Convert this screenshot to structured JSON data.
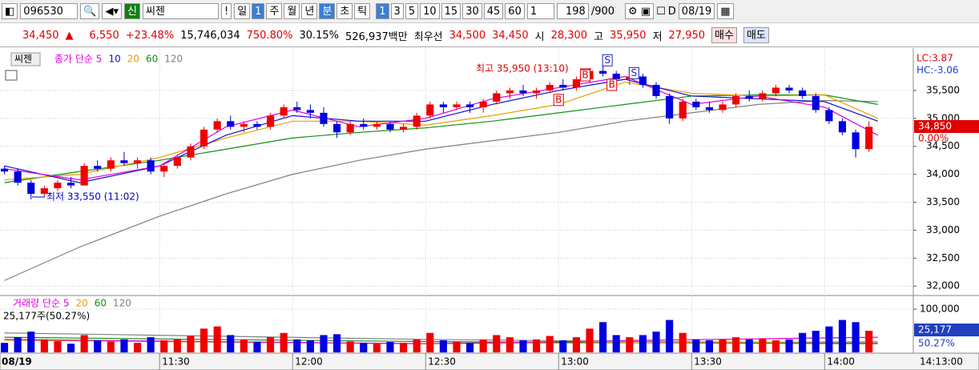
{
  "toolbar": {
    "code": "096530",
    "badge": "신",
    "name": "씨젠",
    "alert": "!",
    "periods": [
      "일",
      "1",
      "주",
      "월",
      "년",
      "분",
      "초",
      "틱"
    ],
    "minutes": [
      "1",
      "3",
      "5",
      "10",
      "15",
      "30",
      "45",
      "60"
    ],
    "unit": "1",
    "count": "198",
    "max": "/900",
    "d_label": "D",
    "date": "08/19"
  },
  "quote": {
    "price": "34,450",
    "arrow": "▲",
    "change": "6,550",
    "rate": "+23.48%",
    "volume": "15,746,034",
    "vol_ratio": "750.80%",
    "turnover": "30.15%",
    "amount": "526,937백만",
    "best_label": "최우선",
    "ask": "34,500",
    "bid": "34,450",
    "open_label": "시",
    "open": "28,300",
    "high_label": "고",
    "high": "35,950",
    "low_label": "저",
    "low": "27,950",
    "buy": "매수",
    "sell": "매도"
  },
  "chart_data": {
    "type": "candlestick",
    "legend_title": "씨젠",
    "up_color": "#f00000",
    "down_color": "#0000e0",
    "x": [
      655,
      658,
      661,
      664,
      667,
      670,
      673,
      676,
      679,
      682,
      685,
      688,
      691,
      694,
      697,
      700,
      703,
      706,
      709,
      712,
      715,
      718,
      721,
      724,
      727,
      730,
      733,
      736,
      739,
      742,
      745,
      748,
      751,
      754,
      757,
      760,
      763,
      766,
      769,
      772,
      775,
      778,
      781,
      784,
      787,
      790,
      793,
      796,
      799,
      802,
      805,
      808,
      811,
      814,
      817,
      820,
      823,
      826,
      829,
      832,
      835,
      838,
      841,
      844,
      847,
      850
    ],
    "open": [
      34100,
      34050,
      33850,
      33650,
      33750,
      33850,
      33800,
      34150,
      34100,
      34250,
      34200,
      34250,
      34050,
      34150,
      34300,
      34500,
      34800,
      34950,
      34850,
      34900,
      34850,
      35050,
      35200,
      35150,
      35100,
      34900,
      34750,
      34900,
      34850,
      34900,
      34800,
      34850,
      35050,
      35250,
      35200,
      35250,
      35200,
      35300,
      35450,
      35500,
      35450,
      35500,
      35600,
      35550,
      35700,
      35850,
      35800,
      35700,
      35750,
      35600,
      35400,
      35000,
      35300,
      35200,
      35150,
      35250,
      35400,
      35350,
      35450,
      35550,
      35500,
      35400,
      35150,
      34950,
      34750,
      34450
    ],
    "high": [
      34150,
      34100,
      33900,
      33800,
      33900,
      33950,
      34200,
      34250,
      34300,
      34400,
      34300,
      34300,
      34200,
      34350,
      34550,
      34850,
      35000,
      35050,
      34950,
      34950,
      35100,
      35250,
      35300,
      35250,
      35200,
      34950,
      34950,
      35000,
      34950,
      34950,
      34900,
      35100,
      35300,
      35300,
      35300,
      35300,
      35350,
      35500,
      35550,
      35600,
      35550,
      35650,
      35700,
      35750,
      35900,
      35950,
      35850,
      35800,
      35800,
      35650,
      35450,
      35350,
      35350,
      35300,
      35300,
      35450,
      35500,
      35500,
      35600,
      35600,
      35550,
      35450,
      35200,
      35000,
      34800,
      34950
    ],
    "low": [
      34000,
      33800,
      33550,
      33600,
      33700,
      33750,
      33800,
      34050,
      34050,
      34150,
      34100,
      34000,
      33950,
      34100,
      34250,
      34450,
      34750,
      34800,
      34750,
      34800,
      34800,
      35000,
      35100,
      35000,
      34850,
      34650,
      34700,
      34800,
      34800,
      34750,
      34750,
      34800,
      35000,
      35100,
      35150,
      35100,
      35100,
      35250,
      35350,
      35400,
      35350,
      35450,
      35500,
      35500,
      35650,
      35750,
      35650,
      35600,
      35550,
      35350,
      34900,
      34950,
      35150,
      35100,
      35100,
      35200,
      35300,
      35300,
      35400,
      35450,
      35350,
      35100,
      34900,
      34700,
      34300,
      34400
    ],
    "close": [
      34050,
      33850,
      33650,
      33750,
      33850,
      33800,
      34150,
      34100,
      34250,
      34200,
      34250,
      34050,
      34150,
      34300,
      34500,
      34800,
      34950,
      34850,
      34900,
      34850,
      35050,
      35200,
      35150,
      35100,
      34900,
      34750,
      34900,
      34850,
      34900,
      34800,
      34850,
      35050,
      35250,
      35200,
      35250,
      35200,
      35300,
      35450,
      35500,
      35450,
      35500,
      35600,
      35550,
      35700,
      35850,
      35800,
      35700,
      35750,
      35600,
      35400,
      35000,
      35300,
      35200,
      35150,
      35250,
      35400,
      35350,
      35450,
      35550,
      35500,
      35400,
      35150,
      34950,
      34750,
      34450,
      34850
    ],
    "series": [
      {
        "name": "종가 단순 5",
        "color": "#e000e0",
        "x": [
          655,
          672,
          690,
          705,
          720,
          735,
          750,
          765,
          780,
          795,
          810,
          825,
          840,
          852
        ],
        "values": [
          34100,
          33900,
          34150,
          34850,
          35150,
          34850,
          35000,
          35350,
          35550,
          35750,
          35250,
          35400,
          35200,
          34700
        ]
      },
      {
        "name": "10",
        "color": "#1010d0",
        "x": [
          655,
          672,
          690,
          705,
          720,
          735,
          750,
          765,
          780,
          795,
          810,
          825,
          840,
          852
        ],
        "values": [
          34150,
          33850,
          34150,
          34700,
          35050,
          34950,
          34950,
          35250,
          35500,
          35700,
          35400,
          35350,
          35300,
          34950
        ]
      },
      {
        "name": "20",
        "color": "#e8a000",
        "x": [
          655,
          672,
          690,
          705,
          720,
          735,
          750,
          765,
          780,
          795,
          810,
          825,
          840,
          852
        ],
        "values": [
          33900,
          34000,
          34300,
          34650,
          34950,
          34950,
          34880,
          35050,
          35250,
          35650,
          35450,
          35400,
          35420,
          35000
        ]
      },
      {
        "name": "60",
        "color": "#109010",
        "x": [
          655,
          672,
          690,
          705,
          720,
          735,
          750,
          765,
          780,
          795,
          810,
          825,
          840,
          852
        ],
        "values": [
          33850,
          34050,
          34250,
          34450,
          34650,
          34750,
          34830,
          34950,
          35100,
          35250,
          35400,
          35420,
          35420,
          35250
        ]
      },
      {
        "name": "120",
        "color": "#808080",
        "x": [
          655,
          672,
          690,
          705,
          720,
          735,
          750,
          765,
          780,
          795,
          810,
          825,
          840,
          852
        ],
        "values": [
          32100,
          32700,
          33250,
          33650,
          34000,
          34250,
          34450,
          34600,
          34750,
          34950,
          35100,
          35250,
          35320,
          35300
        ]
      }
    ],
    "xlim": [
      654,
      860
    ],
    "xticks": [
      {
        "value": 690,
        "label": "11:30"
      },
      {
        "value": 720,
        "label": "12:00"
      },
      {
        "value": 750,
        "label": "12:30"
      },
      {
        "value": 780,
        "label": "13:00"
      },
      {
        "value": 810,
        "label": "13:30"
      },
      {
        "value": 840,
        "label": "14:00"
      }
    ],
    "date_label": "08/19",
    "cursor_label": "14:13:00",
    "ylim": [
      31860,
      36230
    ],
    "yticks": [
      {
        "value": 32000,
        "label": "32,000"
      },
      {
        "value": 32500,
        "label": "32,500"
      },
      {
        "value": 33000,
        "label": "33,000"
      },
      {
        "value": 33500,
        "label": "33,500"
      },
      {
        "value": 34000,
        "label": "34,000"
      },
      {
        "value": 34500,
        "label": "34,500"
      },
      {
        "value": 35000,
        "label": "35,000"
      },
      {
        "value": 35500,
        "label": "35,500"
      }
    ],
    "grid": true,
    "high_note": "최고 35,950 (13:10)",
    "low_note": "최저 33,550 (11:02)",
    "lc_label": "LC:3.87",
    "hc_label": "HC:-3.06",
    "last_tag": "34,850",
    "last_rate": "0.00%",
    "signals": [
      {
        "label": "B",
        "x": 780,
        "price": 35330
      },
      {
        "label": "B",
        "x": 786,
        "price": 35770
      },
      {
        "label": "S",
        "x": 791,
        "price": 36040
      },
      {
        "label": "B",
        "x": 792,
        "price": 35600
      },
      {
        "label": "S",
        "x": 797,
        "price": 35810
      }
    ],
    "volume": {
      "legend_title": "거래량 단순 5",
      "values": [
        22000,
        35000,
        48000,
        30000,
        26000,
        20000,
        40000,
        28000,
        25000,
        30000,
        22000,
        35000,
        28000,
        30000,
        38000,
        55000,
        60000,
        40000,
        30000,
        25000,
        35000,
        45000,
        30000,
        28000,
        40000,
        42000,
        25000,
        22000,
        20000,
        24000,
        22000,
        30000,
        45000,
        28000,
        25000,
        22000,
        30000,
        40000,
        35000,
        28000,
        30000,
        38000,
        28000,
        35000,
        55000,
        70000,
        40000,
        35000,
        40000,
        48000,
        75000,
        45000,
        30000,
        28000,
        30000,
        35000,
        30000,
        32000,
        28000,
        30000,
        45000,
        50000,
        60000,
        75000,
        70000,
        50000
      ],
      "series": [
        {
          "name": "거래량 단순 5",
          "color": "#e000e0",
          "x": [
            655,
            700,
            750,
            800,
            852
          ],
          "values": [
            30000,
            25000,
            20000,
            28000,
            35000
          ]
        },
        {
          "name": "20",
          "color": "#e8a000",
          "x": [
            655,
            700,
            750,
            800,
            852
          ],
          "values": [
            28000,
            24000,
            20000,
            22000,
            25000
          ]
        },
        {
          "name": "60",
          "color": "#109010",
          "x": [
            655,
            700,
            750,
            800,
            852
          ],
          "values": [
            35000,
            30000,
            25000,
            22000,
            20000
          ]
        },
        {
          "name": "120",
          "color": "#808080",
          "x": [
            655,
            700,
            750,
            800,
            852
          ],
          "values": [
            45000,
            38000,
            30000,
            25000,
            22000
          ]
        }
      ],
      "ylim": [
        0,
        126000
      ],
      "yticks": [
        {
          "value": 100000,
          "label": "100,000"
        }
      ],
      "info": "25,177주(50.27%)",
      "last_tag": "25,177",
      "last_rate": "50.27%"
    }
  }
}
